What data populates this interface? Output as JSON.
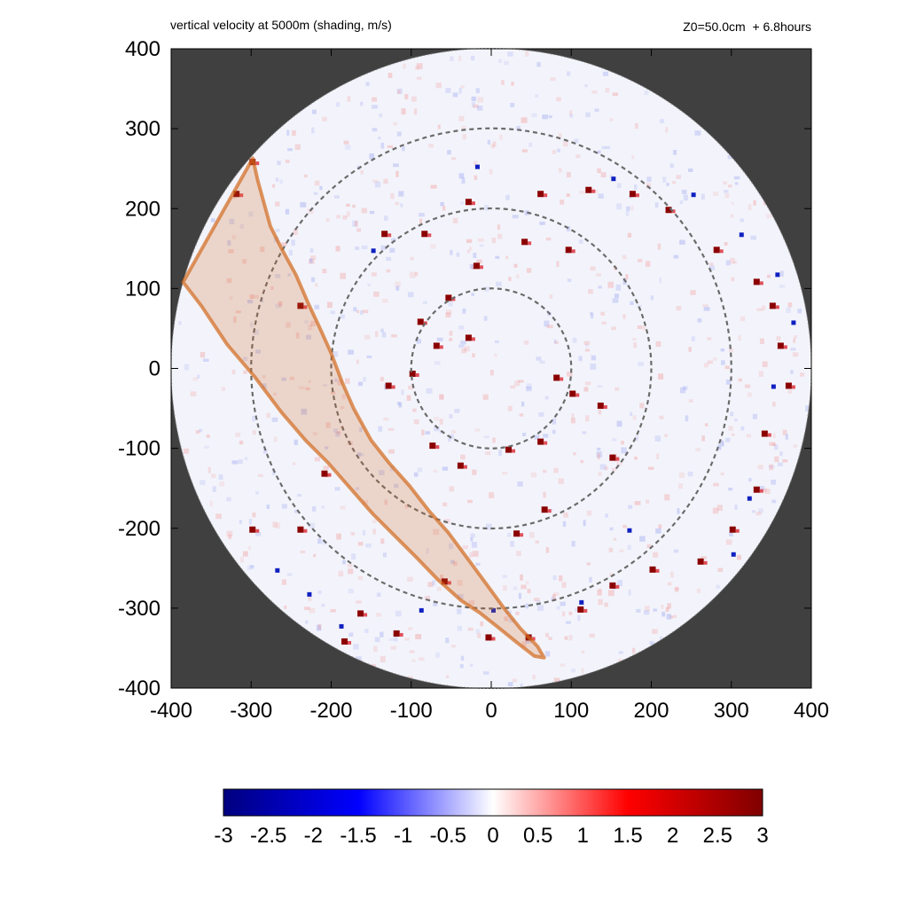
{
  "chart_data": {
    "type": "heatmap",
    "title": "vertical velocity at 5000m (shading, m/s)",
    "subtitle": "Z0=50.0cm  + 6.8hours",
    "xlabel": "",
    "ylabel": "",
    "xlim": [
      -400,
      400
    ],
    "ylim": [
      -400,
      400
    ],
    "xticks": [
      "-400",
      "-300",
      "-200",
      "-100",
      "0",
      "100",
      "200",
      "300",
      "400"
    ],
    "yticks": [
      "400",
      "300",
      "200",
      "100",
      "0",
      "-100",
      "-200",
      "-300",
      "-400"
    ],
    "domain_radius": 400,
    "range_rings": [
      100,
      200,
      300
    ],
    "colorbar": {
      "min": -3,
      "max": 3,
      "ticks": [
        "-3",
        "-2.5",
        "-2",
        "-1.5",
        "-1",
        "-0.5",
        "0",
        "0.5",
        "1",
        "1.5",
        "2",
        "2.5",
        "3"
      ],
      "colormap": [
        "#00007f",
        "#0000ff",
        "#ffffff",
        "#ff0000",
        "#7f0000"
      ]
    },
    "outside_domain_color": "#404040",
    "swath_color": "#d2691e",
    "swath_outline": [
      [
        -298,
        263
      ],
      [
        -292,
        236
      ],
      [
        -276,
        178
      ],
      [
        -262,
        150
      ],
      [
        -244,
        117
      ],
      [
        -228,
        80
      ],
      [
        -214,
        50
      ],
      [
        -200,
        19
      ],
      [
        -186,
        -18
      ],
      [
        -172,
        -50
      ],
      [
        -150,
        -90
      ],
      [
        -128,
        -118
      ],
      [
        -102,
        -147
      ],
      [
        -78,
        -178
      ],
      [
        -54,
        -205
      ],
      [
        -28,
        -240
      ],
      [
        -6,
        -270
      ],
      [
        16,
        -300
      ],
      [
        36,
        -325
      ],
      [
        58,
        -348
      ],
      [
        66,
        -362
      ],
      [
        54,
        -360
      ],
      [
        32,
        -343
      ],
      [
        10,
        -325
      ],
      [
        -14,
        -306
      ],
      [
        -38,
        -290
      ],
      [
        -66,
        -265
      ],
      [
        -94,
        -236
      ],
      [
        -120,
        -210
      ],
      [
        -148,
        -182
      ],
      [
        -176,
        -150
      ],
      [
        -204,
        -118
      ],
      [
        -232,
        -90
      ],
      [
        -262,
        -55
      ],
      [
        -296,
        -10
      ],
      [
        -330,
        30
      ],
      [
        -362,
        78
      ],
      [
        -385,
        108
      ]
    ],
    "strong_updraft_cells": [
      [
        -300,
        260
      ],
      [
        -135,
        170
      ],
      [
        -85,
        170
      ],
      [
        -30,
        210
      ],
      [
        60,
        220
      ],
      [
        120,
        225
      ],
      [
        175,
        220
      ],
      [
        220,
        200
      ],
      [
        280,
        150
      ],
      [
        330,
        110
      ],
      [
        350,
        80
      ],
      [
        360,
        30
      ],
      [
        370,
        -20
      ],
      [
        340,
        -80
      ],
      [
        330,
        -150
      ],
      [
        300,
        -200
      ],
      [
        260,
        -240
      ],
      [
        200,
        -250
      ],
      [
        150,
        -270
      ],
      [
        110,
        -300
      ],
      [
        45,
        -335
      ],
      [
        -5,
        -335
      ],
      [
        -60,
        -265
      ],
      [
        -120,
        -330
      ],
      [
        -165,
        -305
      ],
      [
        -185,
        -340
      ],
      [
        -240,
        -200
      ],
      [
        -300,
        -200
      ],
      [
        -210,
        -130
      ],
      [
        -130,
        -20
      ],
      [
        -100,
        -5
      ],
      [
        -75,
        -95
      ],
      [
        -40,
        -120
      ],
      [
        20,
        -100
      ],
      [
        60,
        -90
      ],
      [
        80,
        -10
      ],
      [
        100,
        -30
      ],
      [
        135,
        -45
      ],
      [
        150,
        -110
      ],
      [
        95,
        150
      ],
      [
        40,
        160
      ],
      [
        -20,
        130
      ],
      [
        -55,
        90
      ],
      [
        -70,
        30
      ],
      [
        30,
        -205
      ],
      [
        65,
        -175
      ],
      [
        -240,
        80
      ],
      [
        -320,
        220
      ],
      [
        -30,
        40
      ],
      [
        -90,
        60
      ]
    ],
    "strong_downdraft_cells": [
      [
        -20,
        255
      ],
      [
        -150,
        150
      ],
      [
        150,
        240
      ],
      [
        250,
        220
      ],
      [
        310,
        170
      ],
      [
        355,
        120
      ],
      [
        375,
        60
      ],
      [
        350,
        -20
      ],
      [
        320,
        -160
      ],
      [
        300,
        -230
      ],
      [
        -270,
        -250
      ],
      [
        -230,
        -280
      ],
      [
        -90,
        -300
      ],
      [
        0,
        -300
      ],
      [
        170,
        -200
      ],
      [
        110,
        -290
      ],
      [
        -190,
        -320
      ]
    ]
  }
}
